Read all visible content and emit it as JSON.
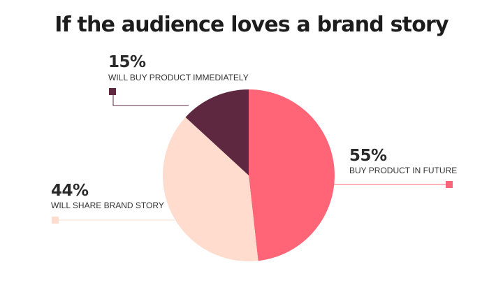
{
  "title": "If the audience loves a brand story",
  "chart_data": {
    "type": "pie",
    "title": "If the audience loves a brand story",
    "slices": [
      {
        "label": "BUY PRODUCT IN FUTURE",
        "percent_label": "55%",
        "value": 55,
        "color": "#ff6577"
      },
      {
        "label": "WILL SHARE BRAND STORY",
        "percent_label": "44%",
        "value": 44,
        "color": "#ffdccd"
      },
      {
        "label": "WILL BUY PRODUCT IMMEDIATELY",
        "percent_label": "15%",
        "value": 15,
        "color": "#5d2840"
      }
    ],
    "colors": {
      "buy_future": "#ff6577",
      "share_story": "#ffdccd",
      "buy_immediately": "#5d2840"
    }
  }
}
